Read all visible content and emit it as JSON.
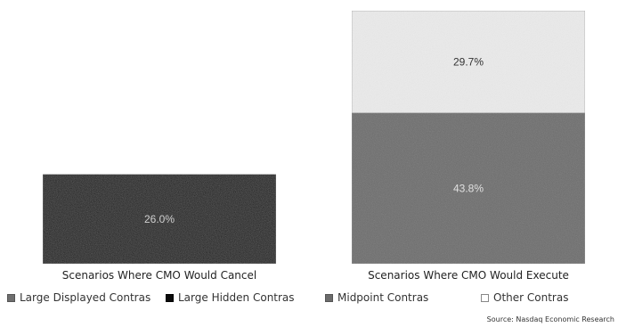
{
  "chart_data": {
    "type": "bar",
    "stacked": true,
    "categories": [
      "Scenarios Where CMO Would Cancel",
      "Scenarios Where CMO Would Execute"
    ],
    "series": [
      {
        "name": "Large Displayed Contras",
        "values": [
          0,
          0
        ],
        "labels": [
          "",
          ""
        ]
      },
      {
        "name": "Large Hidden Contras",
        "values": [
          26.0,
          0
        ],
        "labels": [
          "26.0%",
          ""
        ]
      },
      {
        "name": "Midpoint Contras",
        "values": [
          0,
          43.8
        ],
        "labels": [
          "",
          "43.8%"
        ]
      },
      {
        "name": "Other Contras",
        "values": [
          0,
          29.7
        ],
        "labels": [
          "",
          "29.7%"
        ]
      }
    ],
    "ylim": [
      0,
      73.5
    ],
    "grid": false,
    "legend_position": "bottom",
    "colors": {
      "Large Displayed Contras": "#6e6e6e",
      "Large Hidden Contras": "#0b0b0b",
      "Midpoint Contras": "#6b6b6b",
      "Other Contras": "#ececec"
    },
    "label_colors": {
      "Large Hidden Contras": "#d0d0d0",
      "Midpoint Contras": "#e0e0e0",
      "Other Contras": "#333333"
    }
  },
  "legend": {
    "items": [
      {
        "label": "Large Displayed Contras",
        "swatch_color": "#6e6e6e"
      },
      {
        "label": "Large Hidden Contras",
        "swatch_color": "#0b0b0b"
      },
      {
        "label": "Midpoint Contras",
        "swatch_color": "#6b6b6b"
      },
      {
        "label": "Other Contras",
        "swatch_color": "#ffffff"
      }
    ]
  },
  "footer": {
    "source": "Source: Nasdaq Economic Research"
  }
}
